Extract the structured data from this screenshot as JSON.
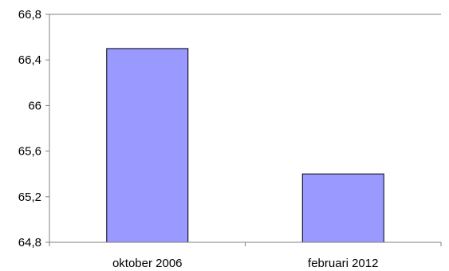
{
  "chart_data": {
    "type": "bar",
    "categories": [
      "oktober 2006",
      "februari 2012"
    ],
    "values": [
      66.5,
      65.4
    ],
    "ylim": [
      64.8,
      66.8
    ],
    "yticks": [
      "64,8",
      "65,2",
      "65,6",
      "66",
      "66,4",
      "66,8"
    ],
    "ytick_values": [
      64.8,
      65.2,
      65.6,
      66.0,
      66.4,
      66.8
    ],
    "bar_color": "#9999ff",
    "grid": "top-line-only",
    "legend": "none"
  }
}
